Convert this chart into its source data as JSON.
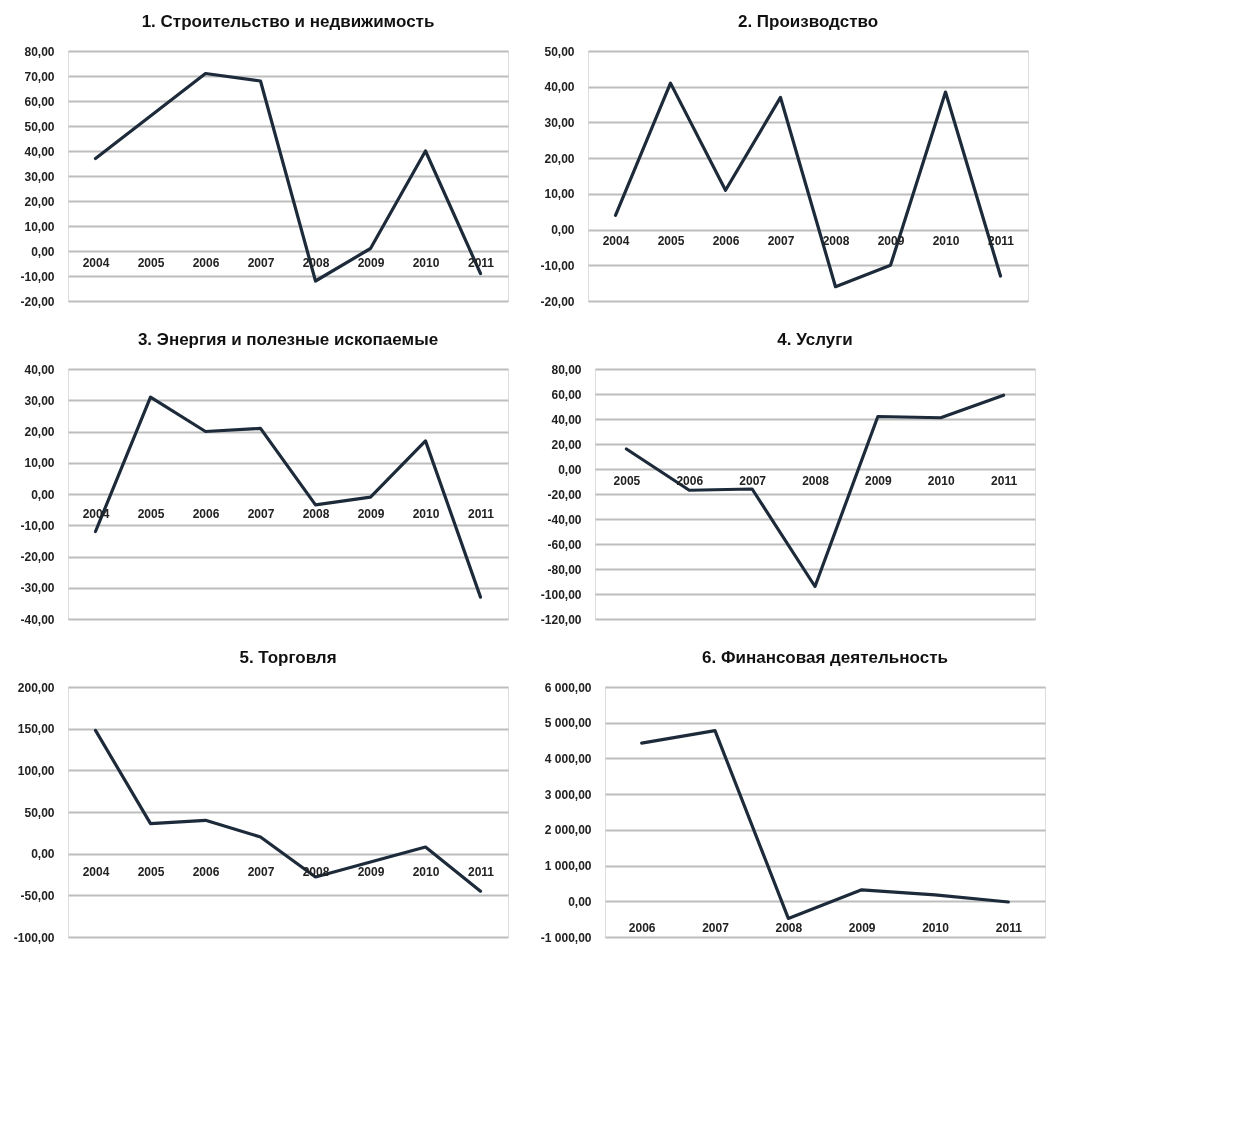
{
  "chart_data": [
    {
      "type": "line",
      "title": "1. Строительство и недвижимость",
      "categories": [
        "2004",
        "2005",
        "2006",
        "2007",
        "2008",
        "2009",
        "2010",
        "2011"
      ],
      "series": [
        {
          "color": "#1c2a3a",
          "values": [
            37,
            54,
            71,
            68,
            -12,
            1,
            40,
            -9
          ]
        }
      ],
      "ylim": [
        -20,
        80
      ],
      "yticks": [
        {
          "value": -20,
          "label": "-20,00"
        },
        {
          "value": -10,
          "label": "-10,00"
        },
        {
          "value": 0,
          "label": "0,00"
        },
        {
          "value": 10,
          "label": "10,00"
        },
        {
          "value": 20,
          "label": "20,00"
        },
        {
          "value": 30,
          "label": "30,00"
        },
        {
          "value": 40,
          "label": "40,00"
        },
        {
          "value": 50,
          "label": "50,00"
        },
        {
          "value": 60,
          "label": "60,00"
        },
        {
          "value": 70,
          "label": "70,00"
        },
        {
          "value": 80,
          "label": "80,00"
        }
      ],
      "grid": "y",
      "line_style": "solid",
      "marker": "none"
    },
    {
      "type": "line",
      "title": "2. Производство",
      "categories": [
        "2004",
        "2005",
        "2006",
        "2007",
        "2008",
        "2009",
        "2010",
        "2011"
      ],
      "series": [
        {
          "color": "#1c2a3a",
          "values": [
            4,
            41,
            11,
            37,
            -16,
            -10,
            38.5,
            -13
          ]
        }
      ],
      "ylim": [
        -20,
        50
      ],
      "yticks": [
        {
          "value": -20,
          "label": "-20,00"
        },
        {
          "value": -10,
          "label": "-10,00"
        },
        {
          "value": 0,
          "label": "0,00"
        },
        {
          "value": 10,
          "label": "10,00"
        },
        {
          "value": 20,
          "label": "20,00"
        },
        {
          "value": 30,
          "label": "30,00"
        },
        {
          "value": 40,
          "label": "40,00"
        },
        {
          "value": 50,
          "label": "50,00"
        }
      ],
      "grid": "y",
      "line_style": "solid",
      "marker": "none"
    },
    {
      "type": "line",
      "title": "3. Энергия и полезные ископаемые",
      "categories": [
        "2004",
        "2005",
        "2006",
        "2007",
        "2008",
        "2009",
        "2010",
        "2011"
      ],
      "series": [
        {
          "color": "#1c2a3a",
          "values": [
            -12,
            31,
            20,
            21,
            -3.5,
            -1,
            17,
            -33
          ]
        }
      ],
      "ylim": [
        -40,
        40
      ],
      "yticks": [
        {
          "value": -40,
          "label": "-40,00"
        },
        {
          "value": -30,
          "label": "-30,00"
        },
        {
          "value": -20,
          "label": "-20,00"
        },
        {
          "value": -10,
          "label": "-10,00"
        },
        {
          "value": 0,
          "label": "0,00"
        },
        {
          "value": 10,
          "label": "10,00"
        },
        {
          "value": 20,
          "label": "20,00"
        },
        {
          "value": 30,
          "label": "30,00"
        },
        {
          "value": 40,
          "label": "40,00"
        }
      ],
      "grid": "y",
      "line_style": "solid",
      "marker": "none"
    },
    {
      "type": "line",
      "title": "4. Услуги",
      "categories": [
        "2005",
        "2006",
        "2007",
        "2008",
        "2009",
        "2010",
        "2011"
      ],
      "series": [
        {
          "color": "#1c2a3a",
          "values": [
            16,
            -17,
            -16,
            -94,
            42,
            41,
            59
          ]
        }
      ],
      "ylim": [
        -120,
        80
      ],
      "yticks": [
        {
          "value": -120,
          "label": "-120,00"
        },
        {
          "value": -100,
          "label": "-100,00"
        },
        {
          "value": -80,
          "label": "-80,00"
        },
        {
          "value": -60,
          "label": "-60,00"
        },
        {
          "value": -40,
          "label": "-40,00"
        },
        {
          "value": -20,
          "label": "-20,00"
        },
        {
          "value": 0,
          "label": "0,00"
        },
        {
          "value": 20,
          "label": "20,00"
        },
        {
          "value": 40,
          "label": "40,00"
        },
        {
          "value": 60,
          "label": "60,00"
        },
        {
          "value": 80,
          "label": "80,00"
        }
      ],
      "grid": "y",
      "line_style": "solid",
      "marker": "none"
    },
    {
      "type": "line",
      "title": "5. Торговля",
      "categories": [
        "2004",
        "2005",
        "2006",
        "2007",
        "2008",
        "2009",
        "2010",
        "2011"
      ],
      "series": [
        {
          "color": "#1c2a3a",
          "values": [
            148,
            36,
            40,
            20,
            -28,
            -10,
            8,
            -45
          ]
        }
      ],
      "ylim": [
        -100,
        200
      ],
      "yticks": [
        {
          "value": -100,
          "label": "-100,00"
        },
        {
          "value": -50,
          "label": "-50,00"
        },
        {
          "value": 0,
          "label": "0,00"
        },
        {
          "value": 50,
          "label": "50,00"
        },
        {
          "value": 100,
          "label": "100,00"
        },
        {
          "value": 150,
          "label": "150,00"
        },
        {
          "value": 200,
          "label": "200,00"
        }
      ],
      "grid": "y",
      "line_style": "solid",
      "marker": "none"
    },
    {
      "type": "line",
      "title": "6. Финансовая деятельность",
      "categories": [
        "2006",
        "2007",
        "2008",
        "2009",
        "2010",
        "2011"
      ],
      "series": [
        {
          "color": "#1c2a3a",
          "values": [
            4430,
            4780,
            -480,
            320,
            180,
            -20
          ]
        }
      ],
      "ylim": [
        -1000,
        6000
      ],
      "yticks": [
        {
          "value": -1000,
          "label": "-1 000,00"
        },
        {
          "value": 0,
          "label": "0,00"
        },
        {
          "value": 1000,
          "label": "1 000,00"
        },
        {
          "value": 2000,
          "label": "2 000,00"
        },
        {
          "value": 3000,
          "label": "3 000,00"
        },
        {
          "value": 4000,
          "label": "4 000,00"
        },
        {
          "value": 5000,
          "label": "5 000,00"
        },
        {
          "value": 6000,
          "label": "6 000,00"
        }
      ],
      "grid": "y",
      "line_style": "solid",
      "marker": "none"
    }
  ]
}
